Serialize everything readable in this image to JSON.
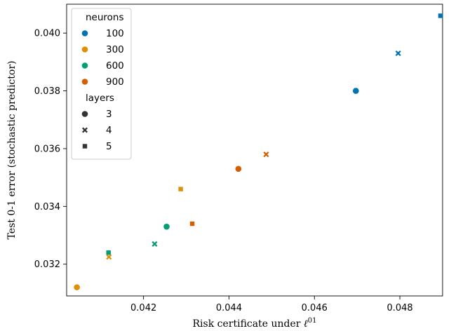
{
  "chart_data": {
    "type": "scatter",
    "title": "",
    "xlabel": "Risk certificate under",
    "xlabel_sup": "01",
    "ylabel": "Test 0-1 error (stochastic predictor)",
    "xlim": [
      0.0402,
      0.049
    ],
    "ylim": [
      0.0309,
      0.041
    ],
    "x_ticks": [
      "0.042",
      "0.044",
      "0.046",
      "0.048"
    ],
    "x_tick_values": [
      0.042,
      0.044,
      0.046,
      0.048
    ],
    "y_ticks": [
      "0.032",
      "0.034",
      "0.036",
      "0.038",
      "0.040"
    ],
    "y_tick_values": [
      0.032,
      0.034,
      0.036,
      0.038,
      0.04
    ],
    "grid": false,
    "legend": {
      "placement": "top-left",
      "hue_title": "neurons",
      "hue_entries": [
        {
          "label": "100",
          "color": "#0173b2"
        },
        {
          "label": "300",
          "color": "#de8f05"
        },
        {
          "label": "600",
          "color": "#029e73"
        },
        {
          "label": "900",
          "color": "#d55e00"
        }
      ],
      "style_title": "layers",
      "style_entries": [
        {
          "label": "3",
          "marker": "circle"
        },
        {
          "label": "4",
          "marker": "x"
        },
        {
          "label": "5",
          "marker": "square"
        }
      ]
    },
    "points": [
      {
        "neurons": "100",
        "layers": "3",
        "x": 0.04697,
        "y": 0.038
      },
      {
        "neurons": "100",
        "layers": "4",
        "x": 0.04796,
        "y": 0.0393
      },
      {
        "neurons": "100",
        "layers": "5",
        "x": 0.04895,
        "y": 0.0406
      },
      {
        "neurons": "300",
        "layers": "3",
        "x": 0.04044,
        "y": 0.0312
      },
      {
        "neurons": "300",
        "layers": "4",
        "x": 0.04119,
        "y": 0.03225
      },
      {
        "neurons": "300",
        "layers": "5",
        "x": 0.04287,
        "y": 0.0346
      },
      {
        "neurons": "600",
        "layers": "3",
        "x": 0.04254,
        "y": 0.0333
      },
      {
        "neurons": "600",
        "layers": "4",
        "x": 0.04226,
        "y": 0.0327
      },
      {
        "neurons": "600",
        "layers": "5",
        "x": 0.04118,
        "y": 0.0324
      },
      {
        "neurons": "900",
        "layers": "3",
        "x": 0.04422,
        "y": 0.0353
      },
      {
        "neurons": "900",
        "layers": "4",
        "x": 0.04487,
        "y": 0.0358
      },
      {
        "neurons": "900",
        "layers": "5",
        "x": 0.04314,
        "y": 0.0334
      }
    ]
  }
}
